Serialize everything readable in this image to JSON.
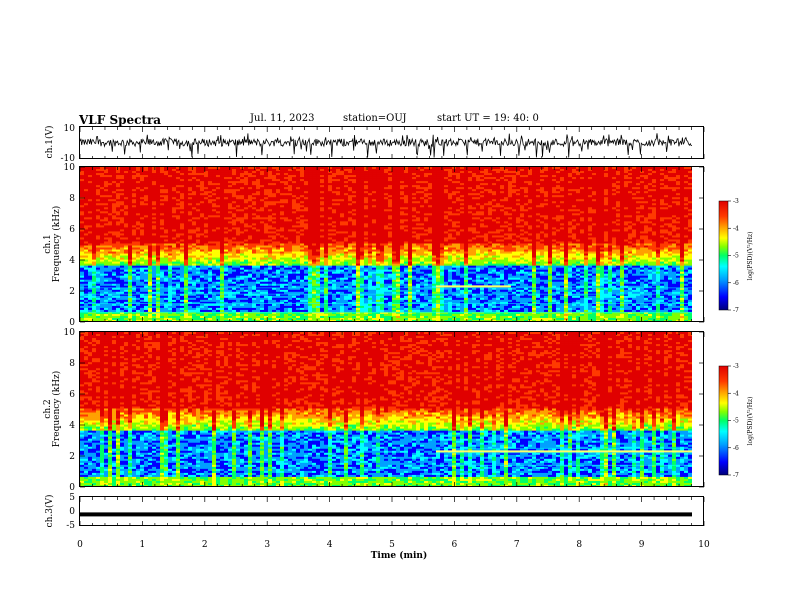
{
  "header": {
    "title": "VLF Spectra",
    "date": "Jul. 11, 2023",
    "station": "station=OUJ",
    "start": "start UT =  19: 40: 0"
  },
  "chart_data": [
    {
      "type": "line",
      "name": "ch1-waveform",
      "ylabel": "ch.1(V)",
      "ylim": [
        -10,
        10
      ],
      "yticks": [
        10,
        -10
      ],
      "xlim": [
        0,
        10
      ]
    },
    {
      "type": "heatmap",
      "name": "ch1-spectrogram",
      "ylabel_line1": "ch.1",
      "ylabel_line2": "Frequency (kHz)",
      "ylim": [
        0,
        10
      ],
      "yticks": [
        0,
        2,
        4,
        6,
        8,
        10
      ],
      "xlim": [
        0,
        10
      ],
      "colorbar": {
        "label": "log(PSD)(V²/Hz)",
        "range": [
          -7,
          -3
        ],
        "ticks": [
          -3,
          -4,
          -5,
          -6,
          -7
        ]
      }
    },
    {
      "type": "heatmap",
      "name": "ch2-spectrogram",
      "ylabel_line1": "ch.2",
      "ylabel_line2": "Frequency (kHz)",
      "ylim": [
        0,
        10
      ],
      "yticks": [
        0,
        2,
        4,
        6,
        8,
        10
      ],
      "xlim": [
        0,
        10
      ],
      "colorbar": {
        "label": "log(PSD)(V²/Hz)",
        "range": [
          -7,
          -3
        ],
        "ticks": [
          -3,
          -4,
          -5,
          -6,
          -7
        ]
      }
    },
    {
      "type": "line",
      "name": "ch3-waveform",
      "ylabel": "ch.3(V)",
      "ylim": [
        -5,
        5
      ],
      "yticks": [
        5,
        0,
        -5
      ],
      "xlim": [
        0,
        10
      ],
      "level": -1,
      "xlabel": "Time (min)",
      "xticks": [
        0,
        1,
        2,
        3,
        4,
        5,
        6,
        7,
        8,
        9,
        10
      ]
    }
  ],
  "colors": {
    "colormap": [
      "#00007a",
      "#0000ff",
      "#00a0ff",
      "#00ffff",
      "#00ff66",
      "#80ff00",
      "#ffff00",
      "#ffa000",
      "#ff3a00",
      "#e00000"
    ]
  }
}
